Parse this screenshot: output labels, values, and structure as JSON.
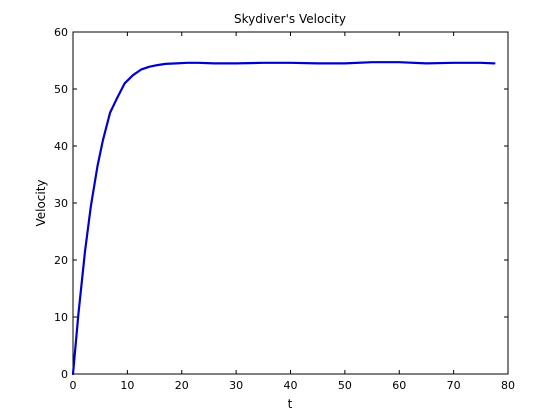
{
  "chart_data": {
    "type": "line",
    "title": "Skydiver's Velocity",
    "xlabel": "t",
    "ylabel": "Velocity",
    "xlim": [
      0,
      80
    ],
    "ylim": [
      0,
      60
    ],
    "xticks": [
      0,
      10,
      20,
      30,
      40,
      50,
      60,
      70,
      80
    ],
    "yticks": [
      0,
      10,
      20,
      30,
      40,
      50,
      60
    ],
    "xtick_labels": [
      "0",
      "10",
      "20",
      "30",
      "40",
      "50",
      "60",
      "70",
      "80"
    ],
    "ytick_labels": [
      "0",
      "10",
      "20",
      "30",
      "40",
      "50",
      "60"
    ],
    "grid": false,
    "series": [
      {
        "color": "#0000cc",
        "x": [
          0,
          1,
          2.2,
          3.3,
          4.5,
          5.5,
          6.8,
          8.0,
          9.5,
          11.0,
          12.5,
          14.0,
          15.5,
          17.0,
          19.0,
          21.0,
          23.0,
          26.0,
          30.0,
          35.0,
          40.0,
          45.0,
          50.0,
          55.0,
          60.0,
          65.0,
          70.0,
          75.0,
          77.5
        ],
        "y": [
          0,
          10.5,
          21.5,
          29.5,
          36.5,
          41.0,
          45.8,
          48.2,
          51.0,
          52.4,
          53.4,
          53.9,
          54.2,
          54.4,
          54.5,
          54.6,
          54.6,
          54.5,
          54.5,
          54.6,
          54.6,
          54.5,
          54.5,
          54.7,
          54.7,
          54.5,
          54.6,
          54.6,
          54.5
        ]
      }
    ]
  }
}
